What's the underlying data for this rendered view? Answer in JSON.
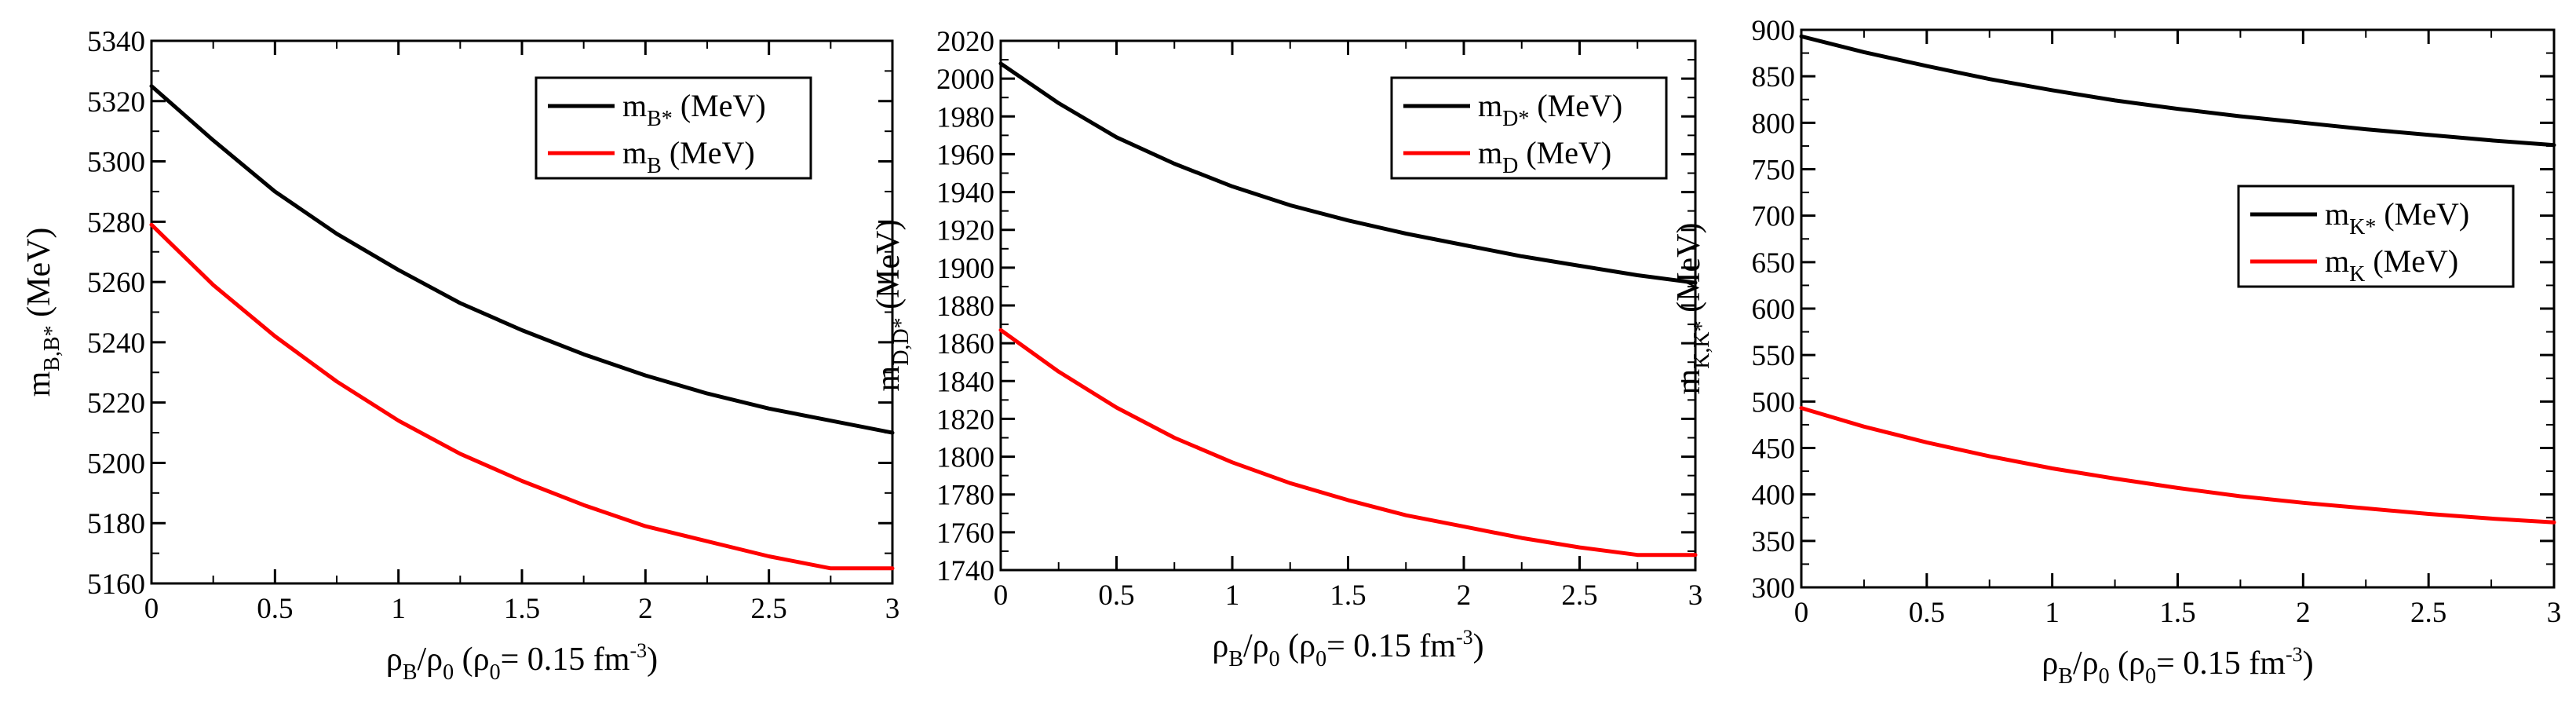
{
  "chart_data": [
    {
      "type": "line",
      "title": "",
      "xlabel": {
        "main": "ρ",
        "main_sub": "B",
        "rest": "/ρ",
        "rest_sub": "0",
        "tail": " (ρ",
        "tail_sub": "0",
        "tail2": "= 0.15 fm",
        "tail_sup": "-3",
        "end": ")"
      },
      "ylabel": {
        "main": "m",
        "sub": "B,B*",
        "unit": " (MeV)"
      },
      "xlim": [
        0,
        3
      ],
      "ylim": [
        5160,
        5340
      ],
      "xticks": [
        "0",
        "0.5",
        "1",
        "1.5",
        "2",
        "2.5",
        "3"
      ],
      "yticks": [
        "5160",
        "5180",
        "5200",
        "5220",
        "5240",
        "5260",
        "5280",
        "5300",
        "5320",
        "5340"
      ],
      "x": [
        0,
        0.25,
        0.5,
        0.75,
        1.0,
        1.25,
        1.5,
        1.75,
        2.0,
        2.25,
        2.5,
        2.75,
        3.0
      ],
      "series": [
        {
          "name": "m_B*",
          "label_main": "m",
          "label_sub": "B*",
          "label_unit": " (MeV)",
          "color": "#000000",
          "values": [
            5325,
            5307,
            5290,
            5276,
            5264,
            5253,
            5244,
            5236,
            5229,
            5223,
            5218,
            5214,
            5210
          ]
        },
        {
          "name": "m_B",
          "label_main": "m",
          "label_sub": "B",
          "label_unit": " (MeV)",
          "color": "#ff0000",
          "values": [
            5279,
            5259,
            5242,
            5227,
            5214,
            5203,
            5194,
            5186,
            5179,
            5174,
            5169,
            5165,
            5165
          ]
        }
      ],
      "legend_position": "top-right"
    },
    {
      "type": "line",
      "title": "",
      "xlabel": {
        "main": "ρ",
        "main_sub": "B",
        "rest": "/ρ",
        "rest_sub": "0",
        "tail": " (ρ",
        "tail_sub": "0",
        "tail2": "= 0.15 fm",
        "tail_sup": "-3",
        "end": ")"
      },
      "ylabel": {
        "main": "m",
        "sub": "D,D*",
        "unit": " (MeV)"
      },
      "xlim": [
        0,
        3
      ],
      "ylim": [
        1740,
        2020
      ],
      "xticks": [
        "0",
        "0.5",
        "1",
        "1.5",
        "2",
        "2.5",
        "3"
      ],
      "yticks": [
        "1740",
        "1760",
        "1780",
        "1800",
        "1820",
        "1840",
        "1860",
        "1880",
        "1900",
        "1920",
        "1940",
        "1960",
        "1980",
        "2000",
        "2020"
      ],
      "x": [
        0,
        0.25,
        0.5,
        0.75,
        1.0,
        1.25,
        1.5,
        1.75,
        2.0,
        2.25,
        2.5,
        2.75,
        3.0
      ],
      "series": [
        {
          "name": "m_D*",
          "label_main": "m",
          "label_sub": "D*",
          "label_unit": " (MeV)",
          "color": "#000000",
          "values": [
            2008,
            1987,
            1969,
            1955,
            1943,
            1933,
            1925,
            1918,
            1912,
            1906,
            1901,
            1896,
            1892
          ]
        },
        {
          "name": "m_D",
          "label_main": "m",
          "label_sub": "D",
          "label_unit": " (MeV)",
          "color": "#ff0000",
          "values": [
            1867,
            1845,
            1826,
            1810,
            1797,
            1786,
            1777,
            1769,
            1763,
            1757,
            1752,
            1748,
            1748
          ]
        }
      ],
      "legend_position": "top-right"
    },
    {
      "type": "line",
      "title": "",
      "xlabel": {
        "main": "ρ",
        "main_sub": "B",
        "rest": "/ρ",
        "rest_sub": "0",
        "tail": " (ρ",
        "tail_sub": "0",
        "tail2": "= 0.15 fm",
        "tail_sup": "-3",
        "end": ")"
      },
      "ylabel": {
        "main": "m",
        "sub": "K,K*",
        "unit": " (MeV)"
      },
      "xlim": [
        0,
        3
      ],
      "ylim": [
        300,
        900
      ],
      "xticks": [
        "0",
        "0.5",
        "1",
        "1.5",
        "2",
        "2.5",
        "3"
      ],
      "yticks": [
        "300",
        "350",
        "400",
        "450",
        "500",
        "550",
        "600",
        "650",
        "700",
        "750",
        "800",
        "850",
        "900"
      ],
      "x": [
        0,
        0.25,
        0.5,
        0.75,
        1.0,
        1.25,
        1.5,
        1.75,
        2.0,
        2.25,
        2.5,
        2.75,
        3.0
      ],
      "series": [
        {
          "name": "m_K*",
          "label_main": "m",
          "label_sub": "K*",
          "label_unit": " (MeV)",
          "color": "#000000",
          "values": [
            893,
            876,
            861,
            847,
            835,
            824,
            815,
            807,
            800,
            793,
            787,
            781,
            776
          ]
        },
        {
          "name": "m_K",
          "label_main": "m",
          "label_sub": "K",
          "label_unit": " (MeV)",
          "color": "#ff0000",
          "values": [
            493,
            473,
            456,
            441,
            428,
            417,
            407,
            398,
            391,
            385,
            379,
            374,
            370
          ]
        }
      ],
      "legend_position": "center-right"
    }
  ]
}
